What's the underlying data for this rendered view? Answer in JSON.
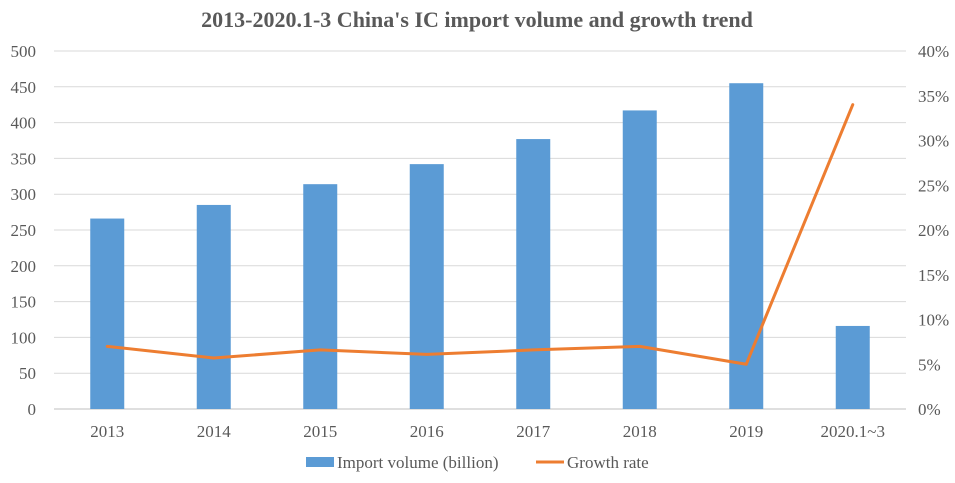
{
  "chart_data": {
    "type": "bar",
    "title": "2013-2020.1-3 China's IC import volume and growth trend",
    "categories": [
      "2013",
      "2014",
      "2015",
      "2016",
      "2017",
      "2018",
      "2019",
      "2020.1~3"
    ],
    "series": [
      {
        "name": "Import volume (billion)",
        "type": "bar",
        "axis": "left",
        "color": "#5B9BD5",
        "values": [
          266,
          285,
          314,
          342,
          377,
          417,
          455,
          116
        ]
      },
      {
        "name": "Growth rate",
        "type": "line",
        "axis": "right",
        "color": "#ED7D31",
        "values": [
          7.0,
          5.7,
          6.6,
          6.1,
          6.6,
          7.0,
          5.0,
          34.0
        ]
      }
    ],
    "y_left": {
      "ylim": [
        0,
        500
      ],
      "ticks": [
        "0",
        "50",
        "100",
        "150",
        "200",
        "250",
        "300",
        "350",
        "400",
        "450",
        "500"
      ]
    },
    "y_right": {
      "ylim": [
        0,
        40
      ],
      "ticks": [
        "0%",
        "5%",
        "10%",
        "15%",
        "20%",
        "25%",
        "30%",
        "35%",
        "40%"
      ]
    },
    "grid": true,
    "legend": "bottom",
    "colors": {
      "grid": "#D9D9D9",
      "text": "#595959"
    }
  }
}
